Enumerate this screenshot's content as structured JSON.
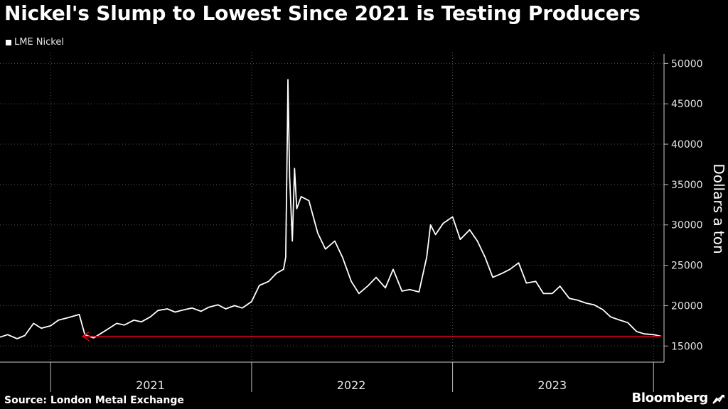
{
  "title": "Nickel's Slump to Lowest Since 2021 is Testing Producers",
  "legend": {
    "label": "LME Nickel",
    "color": "#ffffff"
  },
  "source": "Source: London Metal Exchange",
  "brand": "Bloomberg",
  "colors": {
    "background": "#000000",
    "line": "#ffffff",
    "arrow": "#e3001b",
    "grid": "#555555"
  },
  "chart_data": {
    "type": "line",
    "title": "Nickel's Slump to Lowest Since 2021 is Testing Producers",
    "xlabel": "",
    "ylabel": "Dollars a ton",
    "ylim": [
      13000,
      51000
    ],
    "yticks": [
      15000,
      20000,
      25000,
      30000,
      35000,
      40000,
      45000,
      50000
    ],
    "xlim": [
      "2020-10-01",
      "2024-01-20"
    ],
    "year_labels": [
      {
        "label": "2021",
        "date": "2021-07-01"
      },
      {
        "label": "2022",
        "date": "2022-07-01"
      },
      {
        "label": "2023",
        "date": "2023-07-01"
      }
    ],
    "year_dividers": [
      "2021-01-01",
      "2022-01-01",
      "2023-01-01",
      "2024-01-01"
    ],
    "grid": true,
    "legend_position": "top-left",
    "series": [
      {
        "name": "LME Nickel",
        "x": [
          "2020-10-01",
          "2020-10-15",
          "2020-11-01",
          "2020-11-15",
          "2020-12-01",
          "2020-12-15",
          "2021-01-01",
          "2021-01-15",
          "2021-02-01",
          "2021-02-22",
          "2021-03-04",
          "2021-03-20",
          "2021-04-01",
          "2021-04-15",
          "2021-05-01",
          "2021-05-15",
          "2021-06-01",
          "2021-06-15",
          "2021-07-01",
          "2021-07-15",
          "2021-08-01",
          "2021-08-15",
          "2021-09-01",
          "2021-09-15",
          "2021-10-01",
          "2021-10-15",
          "2021-11-01",
          "2021-11-15",
          "2021-12-01",
          "2021-12-15",
          "2022-01-01",
          "2022-01-15",
          "2022-02-01",
          "2022-02-15",
          "2022-02-28",
          "2022-03-04",
          "2022-03-07",
          "2022-03-08",
          "2022-03-11",
          "2022-03-16",
          "2022-03-20",
          "2022-03-24",
          "2022-04-01",
          "2022-04-15",
          "2022-05-01",
          "2022-05-15",
          "2022-06-01",
          "2022-06-15",
          "2022-07-01",
          "2022-07-15",
          "2022-08-01",
          "2022-08-15",
          "2022-09-01",
          "2022-09-15",
          "2022-10-01",
          "2022-10-15",
          "2022-11-01",
          "2022-11-15",
          "2022-11-22",
          "2022-12-01",
          "2022-12-15",
          "2023-01-01",
          "2023-01-15",
          "2023-02-01",
          "2023-02-15",
          "2023-03-01",
          "2023-03-15",
          "2023-04-01",
          "2023-04-15",
          "2023-05-01",
          "2023-05-15",
          "2023-06-01",
          "2023-06-15",
          "2023-07-01",
          "2023-07-15",
          "2023-08-01",
          "2023-08-15",
          "2023-09-01",
          "2023-09-15",
          "2023-10-01",
          "2023-10-15",
          "2023-11-01",
          "2023-11-15",
          "2023-12-01",
          "2023-12-15",
          "2024-01-01",
          "2024-01-15"
        ],
        "values": [
          16100,
          16400,
          15900,
          16300,
          17800,
          17200,
          17500,
          18200,
          18500,
          18900,
          16400,
          16000,
          16500,
          17100,
          17800,
          17600,
          18200,
          18000,
          18600,
          19400,
          19600,
          19200,
          19500,
          19700,
          19300,
          19800,
          20100,
          19600,
          20000,
          19700,
          20500,
          22500,
          23000,
          24000,
          24500,
          26000,
          42000,
          48000,
          36000,
          28000,
          37000,
          32000,
          33500,
          33000,
          29000,
          27000,
          28000,
          26000,
          23000,
          21500,
          22500,
          23500,
          22200,
          24500,
          21800,
          22000,
          21700,
          26000,
          30000,
          28800,
          30200,
          31000,
          28200,
          29400,
          28000,
          26000,
          23500,
          24000,
          24500,
          25300,
          22800,
          23000,
          21500,
          21500,
          22400,
          20900,
          20700,
          20300,
          20100,
          19500,
          18600,
          18200,
          17900,
          16800,
          16500,
          16400,
          16200
        ]
      }
    ],
    "annotations": [
      {
        "type": "arrow",
        "value": 16200,
        "from": "2024-01-15",
        "to": "2021-02-28",
        "color": "#e3001b"
      }
    ]
  }
}
